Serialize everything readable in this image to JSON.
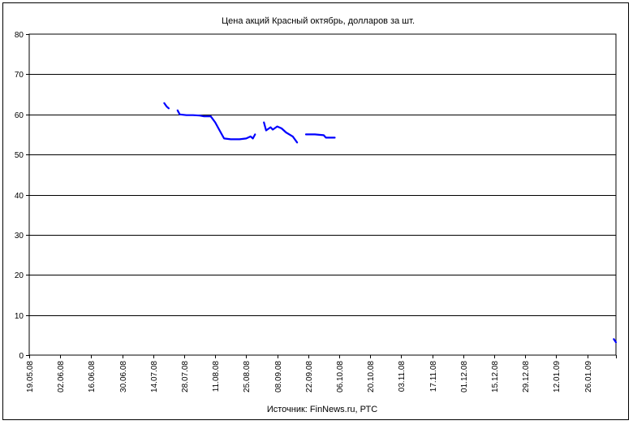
{
  "chart_data": {
    "type": "line",
    "title": "Цена акций Красный октябрь, долларов за шт.",
    "source": "Источник: FinNews.ru, РТС",
    "xlabel": "",
    "ylabel": "",
    "ylim": [
      0,
      80
    ],
    "yticks": [
      0,
      10,
      20,
      30,
      40,
      50,
      60,
      70,
      80
    ],
    "x_range": [
      "2008-05-19",
      "2009-02-08"
    ],
    "xtick_labels": [
      "19.05.08",
      "02.06.08",
      "16.06.08",
      "30.06.08",
      "14.07.08",
      "28.07.08",
      "11.08.08",
      "25.08.08",
      "08.09.08",
      "22.09.08",
      "06.10.08",
      "20.10.08",
      "03.11.08",
      "17.11.08",
      "01.12.08",
      "15.12.08",
      "29.12.08",
      "12.01.09",
      "26.01.09"
    ],
    "grid": "horizontal major",
    "line_color": "#0000ff",
    "segments": [
      [
        [
          "2008-07-19",
          62.8
        ],
        [
          "2008-07-20",
          62.0
        ],
        [
          "2008-07-21",
          61.5
        ]
      ],
      [
        [
          "2008-07-25",
          61.0
        ],
        [
          "2008-07-26",
          60.0
        ],
        [
          "2008-07-29",
          59.8
        ],
        [
          "2008-08-01",
          59.8
        ],
        [
          "2008-08-04",
          59.7
        ],
        [
          "2008-08-06",
          59.5
        ],
        [
          "2008-08-09",
          59.5
        ]
      ],
      [
        [
          "2008-08-09",
          59.5
        ],
        [
          "2008-08-11",
          58.0
        ],
        [
          "2008-08-13",
          56.0
        ],
        [
          "2008-08-15",
          54.0
        ],
        [
          "2008-08-18",
          53.8
        ],
        [
          "2008-08-22",
          53.8
        ],
        [
          "2008-08-25",
          54.0
        ],
        [
          "2008-08-27",
          54.5
        ],
        [
          "2008-08-28",
          54.0
        ],
        [
          "2008-08-29",
          55.0
        ]
      ],
      [
        [
          "2008-09-02",
          58.0
        ],
        [
          "2008-09-03",
          56.0
        ],
        [
          "2008-09-05",
          56.8
        ],
        [
          "2008-09-06",
          56.2
        ],
        [
          "2008-09-08",
          57.0
        ],
        [
          "2008-09-10",
          56.5
        ],
        [
          "2008-09-12",
          55.5
        ],
        [
          "2008-09-15",
          54.5
        ],
        [
          "2008-09-17",
          53.0
        ]
      ],
      [
        [
          "2008-09-21",
          55.0
        ],
        [
          "2008-09-25",
          55.0
        ],
        [
          "2008-09-29",
          54.8
        ],
        [
          "2008-09-30",
          54.2
        ],
        [
          "2008-10-04",
          54.2
        ]
      ],
      [
        [
          "2009-02-07",
          4.0
        ],
        [
          "2009-02-08",
          3.2
        ]
      ]
    ]
  }
}
